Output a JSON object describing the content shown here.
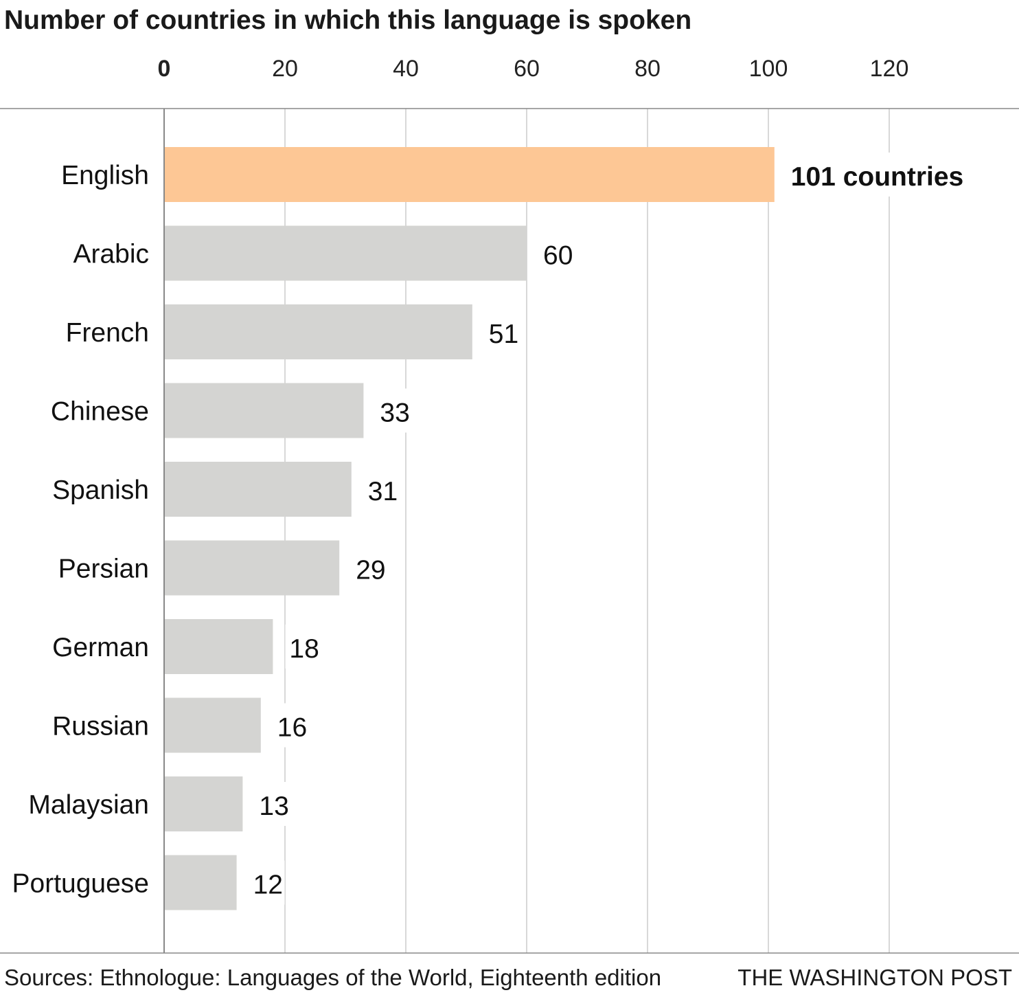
{
  "chart_data": {
    "type": "bar",
    "orientation": "horizontal",
    "title": "Number of countries in which this language is spoken",
    "categories": [
      "English",
      "Arabic",
      "French",
      "Chinese",
      "Spanish",
      "Persian",
      "German",
      "Russian",
      "Malaysian",
      "Portuguese"
    ],
    "values": [
      101,
      60,
      51,
      33,
      31,
      29,
      18,
      16,
      13,
      12
    ],
    "value_labels": [
      "101 countries",
      "60",
      "51",
      "33",
      "31",
      "29",
      "18",
      "16",
      "13",
      "12"
    ],
    "xticks": [
      0,
      20,
      40,
      60,
      80,
      100,
      120
    ],
    "xlim": [
      0,
      140
    ],
    "xlabel": "",
    "ylabel": "",
    "grid": true,
    "axis_position": "top",
    "colors": {
      "highlight": "#fdc795",
      "default": "#d4d4d2",
      "grid": "#cccccc",
      "axis": "#888888"
    },
    "highlight_index": 0
  },
  "footer": {
    "source": "Sources: Ethnologue: Languages of the World, Eighteenth edition",
    "credit": "THE WASHINGTON POST"
  }
}
